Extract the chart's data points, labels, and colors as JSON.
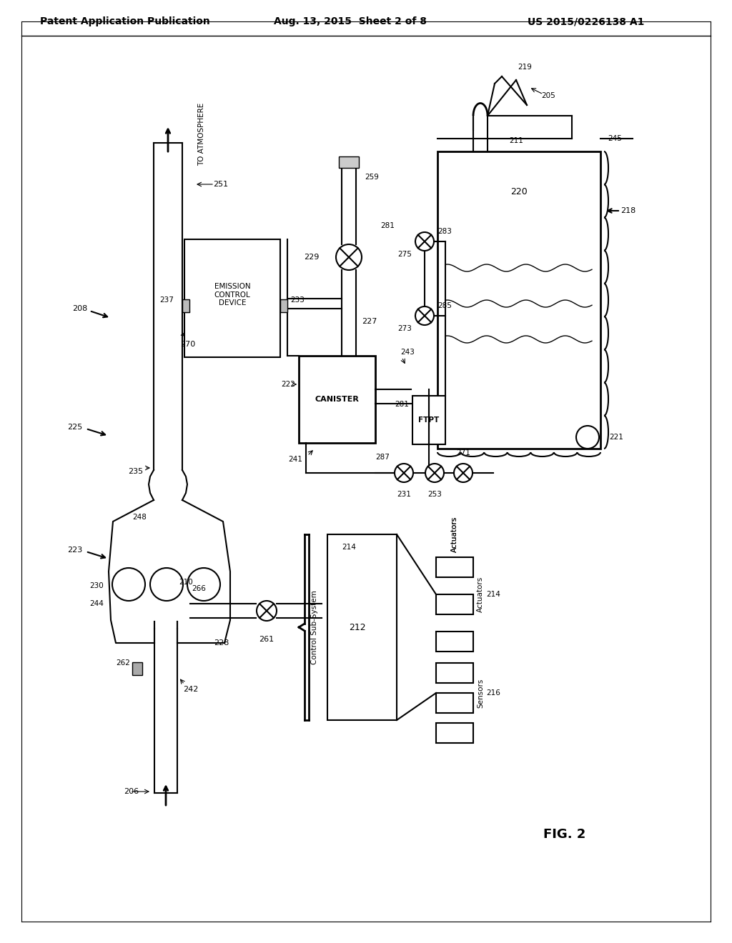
{
  "header_left": "Patent Application Publication",
  "header_mid": "Aug. 13, 2015  Sheet 2 of 8",
  "header_right": "US 2015/0226138 A1",
  "fig_label": "FIG. 2",
  "background": "#ffffff",
  "line_color": "#000000",
  "font_color": "#000000"
}
